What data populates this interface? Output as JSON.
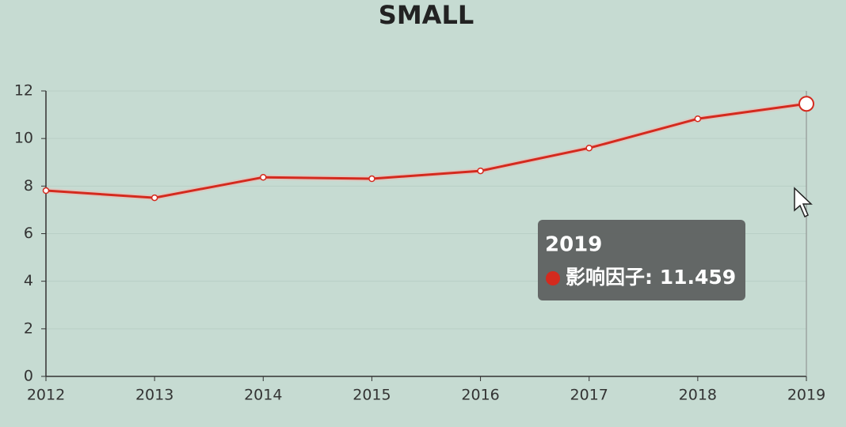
{
  "chart_data": {
    "type": "line",
    "title": "SMALL",
    "categories": [
      "2012",
      "2013",
      "2014",
      "2015",
      "2016",
      "2017",
      "2018",
      "2019"
    ],
    "series": [
      {
        "name": "影响因子",
        "color": "#d42a1e",
        "values": [
          7.81,
          7.51,
          8.37,
          8.31,
          8.64,
          9.6,
          10.83,
          11.459
        ]
      }
    ],
    "ylim": [
      0,
      12
    ],
    "yticks": [
      0,
      2,
      4,
      6,
      8,
      10,
      12
    ],
    "grid": true,
    "tooltip": {
      "index": 7,
      "separator": ":"
    }
  }
}
